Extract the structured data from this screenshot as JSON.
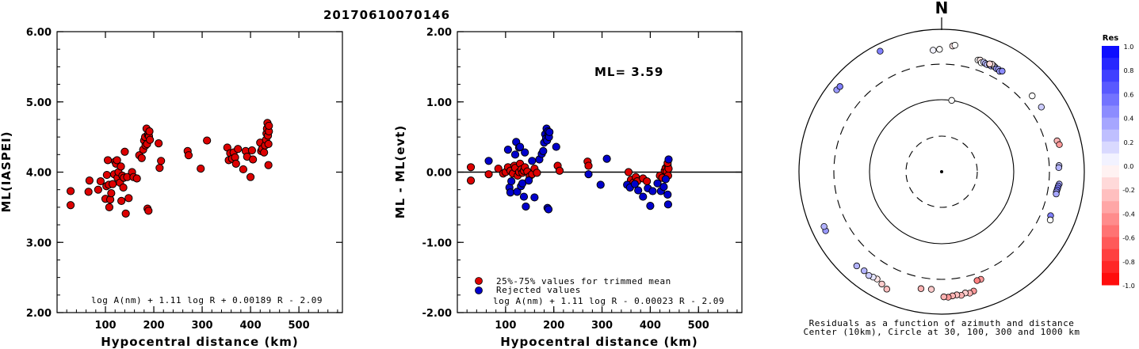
{
  "event_id": "20170610070146",
  "left_panel": {
    "ylabel": "ML(IASPEI)",
    "xlabel": "Hypocentral distance (km)",
    "yticks": [
      "2.00",
      "3.00",
      "4.00",
      "5.00",
      "6.00"
    ],
    "xticks": [
      "100",
      "200",
      "300",
      "400",
      "500"
    ],
    "formula": "log A(nm) + 1.11 log R + 0.00189 R - 2.09"
  },
  "middle_panel": {
    "ylabel": "ML - ML(evt)",
    "xlabel": "Hypocentral distance (km)",
    "yticks": [
      "-2.00",
      "-1.00",
      "0.00",
      "1.00",
      "2.00"
    ],
    "xticks": [
      "100",
      "200",
      "300",
      "400",
      "500"
    ],
    "ml_label": "ML= 3.59",
    "legend_trimmed": "25%-75% values for trimmed mean",
    "legend_rejected": "Rejected values",
    "formula": "log A(nm) + 1.11 log R - 0.00023 R - 2.09"
  },
  "right_panel": {
    "north": "N",
    "caption_line1": "Residuals as a function of azimuth and distance",
    "caption_line2": "Center (10km), Circle at 30, 100, 300 and 1000 km"
  },
  "colorbar": {
    "title": "Res",
    "labels": [
      "1.0",
      "0.8",
      "0.6",
      "0.4",
      "0.2",
      "0.0",
      "-0.2",
      "-0.4",
      "-0.6",
      "-0.8",
      "-1.0"
    ]
  },
  "colors": {
    "accepted": "#dd0000",
    "rejected": "#0000cc"
  },
  "chart_data": [
    {
      "type": "scatter",
      "title": "20170610070146",
      "xlabel": "Hypocentral distance (km)",
      "ylabel": "ML(IASPEI)",
      "xlim": [
        0,
        590
      ],
      "ylim": [
        2.0,
        6.0
      ],
      "points": [
        [
          28,
          3.73
        ],
        [
          28,
          3.53
        ],
        [
          65,
          3.72
        ],
        [
          67,
          3.88
        ],
        [
          85,
          3.75
        ],
        [
          90,
          3.87
        ],
        [
          100,
          3.62
        ],
        [
          102,
          3.8
        ],
        [
          103,
          3.96
        ],
        [
          105,
          4.17
        ],
        [
          107,
          3.82
        ],
        [
          108,
          3.5
        ],
        [
          110,
          3.61
        ],
        [
          112,
          3.7
        ],
        [
          115,
          3.83
        ],
        [
          118,
          3.97
        ],
        [
          120,
          4.15
        ],
        [
          122,
          4.12
        ],
        [
          124,
          4.17
        ],
        [
          125,
          3.92
        ],
        [
          127,
          4.0
        ],
        [
          130,
          3.85
        ],
        [
          132,
          4.08
        ],
        [
          133,
          3.59
        ],
        [
          135,
          3.95
        ],
        [
          137,
          3.78
        ],
        [
          138,
          3.92
        ],
        [
          140,
          4.29
        ],
        [
          142,
          3.41
        ],
        [
          145,
          3.93
        ],
        [
          148,
          3.63
        ],
        [
          155,
          4.0
        ],
        [
          158,
          3.93
        ],
        [
          165,
          3.91
        ],
        [
          170,
          4.24
        ],
        [
          175,
          4.2
        ],
        [
          178,
          4.32
        ],
        [
          180,
          4.45
        ],
        [
          182,
          4.5
        ],
        [
          183,
          4.38
        ],
        [
          185,
          4.62
        ],
        [
          186,
          4.4
        ],
        [
          188,
          4.53
        ],
        [
          189,
          4.55
        ],
        [
          190,
          4.51
        ],
        [
          191,
          4.58
        ],
        [
          192,
          4.46
        ],
        [
          187,
          3.48
        ],
        [
          189,
          3.45
        ],
        [
          210,
          4.41
        ],
        [
          212,
          4.06
        ],
        [
          215,
          4.16
        ],
        [
          270,
          4.3
        ],
        [
          272,
          4.24
        ],
        [
          297,
          4.05
        ],
        [
          310,
          4.45
        ],
        [
          352,
          4.35
        ],
        [
          355,
          4.17
        ],
        [
          358,
          4.27
        ],
        [
          362,
          4.19
        ],
        [
          365,
          4.28
        ],
        [
          368,
          4.21
        ],
        [
          370,
          4.12
        ],
        [
          374,
          4.33
        ],
        [
          385,
          4.04
        ],
        [
          390,
          4.3
        ],
        [
          393,
          4.22
        ],
        [
          400,
          3.93
        ],
        [
          403,
          4.31
        ],
        [
          405,
          4.18
        ],
        [
          420,
          4.42
        ],
        [
          422,
          4.3
        ],
        [
          424,
          4.33
        ],
        [
          428,
          4.28
        ],
        [
          430,
          4.38
        ],
        [
          432,
          4.46
        ],
        [
          433,
          4.55
        ],
        [
          434,
          4.62
        ],
        [
          435,
          4.7
        ],
        [
          436,
          4.52
        ],
        [
          437,
          4.4
        ],
        [
          438,
          4.58
        ],
        [
          437,
          4.1
        ],
        [
          438,
          4.66
        ]
      ]
    },
    {
      "type": "scatter",
      "title": "",
      "xlabel": "Hypocentral distance (km)",
      "ylabel": "ML - ML(evt)",
      "xlim": [
        0,
        590
      ],
      "ylim": [
        -2.0,
        2.0
      ],
      "hline": 0.0,
      "series": [
        {
          "name": "25%-75% values for trimmed mean",
          "points": [
            [
              28,
              0.07
            ],
            [
              28,
              -0.12
            ],
            [
              65,
              -0.03
            ],
            [
              85,
              0.05
            ],
            [
              95,
              -0.02
            ],
            [
              100,
              0.0
            ],
            [
              105,
              0.07
            ],
            [
              110,
              0.02
            ],
            [
              115,
              -0.02
            ],
            [
              118,
              0.09
            ],
            [
              120,
              0.06
            ],
            [
              125,
              -0.05
            ],
            [
              128,
              0.0
            ],
            [
              130,
              0.12
            ],
            [
              133,
              0.04
            ],
            [
              135,
              -0.01
            ],
            [
              138,
              0.02
            ],
            [
              140,
              0.07
            ],
            [
              145,
              0.01
            ],
            [
              150,
              -0.06
            ],
            [
              155,
              -0.03
            ],
            [
              160,
              0.05
            ],
            [
              165,
              -0.01
            ],
            [
              208,
              0.09
            ],
            [
              212,
              0.02
            ],
            [
              270,
              0.15
            ],
            [
              272,
              0.09
            ],
            [
              355,
              0.0
            ],
            [
              360,
              -0.11
            ],
            [
              365,
              -0.15
            ],
            [
              370,
              -0.07
            ],
            [
              373,
              -0.13
            ],
            [
              385,
              -0.09
            ],
            [
              393,
              -0.13
            ],
            [
              420,
              -0.05
            ],
            [
              425,
              -0.08
            ],
            [
              430,
              0.02
            ],
            [
              432,
              0.06
            ],
            [
              434,
              0.01
            ],
            [
              436,
              0.1
            ],
            [
              437,
              -0.05
            ],
            [
              438,
              0.05
            ],
            [
              436,
              0.13
            ]
          ]
        },
        {
          "name": "Rejected values",
          "points": [
            [
              65,
              0.16
            ],
            [
              105,
              0.32
            ],
            [
              108,
              -0.22
            ],
            [
              110,
              -0.29
            ],
            [
              112,
              -0.13
            ],
            [
              120,
              0.25
            ],
            [
              122,
              0.43
            ],
            [
              124,
              -0.28
            ],
            [
              128,
              0.35
            ],
            [
              130,
              0.36
            ],
            [
              132,
              -0.2
            ],
            [
              135,
              -0.16
            ],
            [
              138,
              -0.35
            ],
            [
              140,
              0.28
            ],
            [
              142,
              -0.49
            ],
            [
              148,
              -0.12
            ],
            [
              155,
              0.16
            ],
            [
              160,
              -0.36
            ],
            [
              170,
              0.18
            ],
            [
              175,
              0.26
            ],
            [
              178,
              0.3
            ],
            [
              180,
              0.42
            ],
            [
              182,
              0.54
            ],
            [
              184,
              0.48
            ],
            [
              185,
              0.62
            ],
            [
              186,
              0.45
            ],
            [
              188,
              0.58
            ],
            [
              189,
              0.52
            ],
            [
              190,
              0.5
            ],
            [
              191,
              0.57
            ],
            [
              187,
              -0.51
            ],
            [
              189,
              -0.53
            ],
            [
              205,
              0.36
            ],
            [
              272,
              -0.03
            ],
            [
              297,
              -0.18
            ],
            [
              310,
              0.19
            ],
            [
              352,
              -0.18
            ],
            [
              358,
              -0.22
            ],
            [
              368,
              -0.17
            ],
            [
              375,
              -0.26
            ],
            [
              385,
              -0.35
            ],
            [
              395,
              -0.23
            ],
            [
              400,
              -0.48
            ],
            [
              405,
              -0.27
            ],
            [
              415,
              -0.16
            ],
            [
              422,
              -0.27
            ],
            [
              428,
              -0.21
            ],
            [
              432,
              -0.1
            ],
            [
              436,
              -0.32
            ],
            [
              438,
              0.18
            ],
            [
              437,
              -0.46
            ]
          ]
        }
      ]
    },
    {
      "type": "polar-scatter",
      "title": "",
      "rings_km": [
        30,
        100,
        300,
        1000
      ],
      "center_km": 10,
      "points": [
        [
          333,
          780,
          0.5
        ],
        [
          356,
          490,
          0.05
        ],
        [
          359,
          500,
          0.0
        ],
        [
          5,
          570,
          -0.1
        ],
        [
          6,
          590,
          0.0
        ],
        [
          18,
          420,
          0.0
        ],
        [
          19,
          430,
          -0.1
        ],
        [
          20,
          400,
          0.0
        ],
        [
          21,
          420,
          0.2
        ],
        [
          22,
          410,
          0.3
        ],
        [
          23,
          405,
          0.25
        ],
        [
          24,
          420,
          0.3
        ],
        [
          25,
          410,
          0.35
        ],
        [
          26,
          430,
          0.3
        ],
        [
          27,
          420,
          0.2
        ],
        [
          28,
          410,
          0.4
        ],
        [
          29,
          415,
          0.35
        ],
        [
          30,
          400,
          0.4
        ],
        [
          31,
          420,
          0.45
        ],
        [
          25,
          440,
          -0.1
        ],
        [
          24,
          430,
          -0.15
        ],
        [
          50,
          430,
          0.0
        ],
        [
          57,
          440,
          0.2
        ],
        [
          75,
          450,
          -0.3
        ],
        [
          77,
          470,
          -0.4
        ],
        [
          87,
          420,
          0.2
        ],
        [
          88,
          415,
          0.3
        ],
        [
          96,
          430,
          0.35
        ],
        [
          97,
          420,
          0.45
        ],
        [
          98,
          415,
          0.5
        ],
        [
          99,
          410,
          0.55
        ],
        [
          100,
          405,
          0.4
        ],
        [
          101,
          408,
          0.35
        ],
        [
          112,
          420,
          0.5
        ],
        [
          114,
          440,
          0.0
        ],
        [
          160,
          380,
          -0.4
        ],
        [
          162,
          380,
          -0.5
        ],
        [
          165,
          520,
          -0.4
        ],
        [
          167,
          540,
          -0.3
        ],
        [
          169,
          520,
          -0.2
        ],
        [
          171,
          550,
          -0.3
        ],
        [
          173,
          530,
          -0.25
        ],
        [
          175,
          540,
          -0.3
        ],
        [
          177,
          560,
          -0.4
        ],
        [
          179,
          550,
          -0.3
        ],
        [
          185,
          430,
          -0.2
        ],
        [
          190,
          440,
          -0.3
        ],
        [
          205,
          640,
          -0.25
        ],
        [
          208,
          590,
          -0.2
        ],
        [
          211,
          550,
          -0.1
        ],
        [
          213,
          560,
          0.1
        ],
        [
          215,
          580,
          0.2
        ],
        [
          218,
          560,
          0.3
        ],
        [
          222,
          580,
          0.3
        ],
        [
          243,
          650,
          0.4
        ],
        [
          245,
          640,
          0.3
        ],
        [
          308,
          720,
          0.4
        ],
        [
          310,
          710,
          0.5
        ],
        [
          8,
          100,
          0.0
        ]
      ]
    }
  ]
}
